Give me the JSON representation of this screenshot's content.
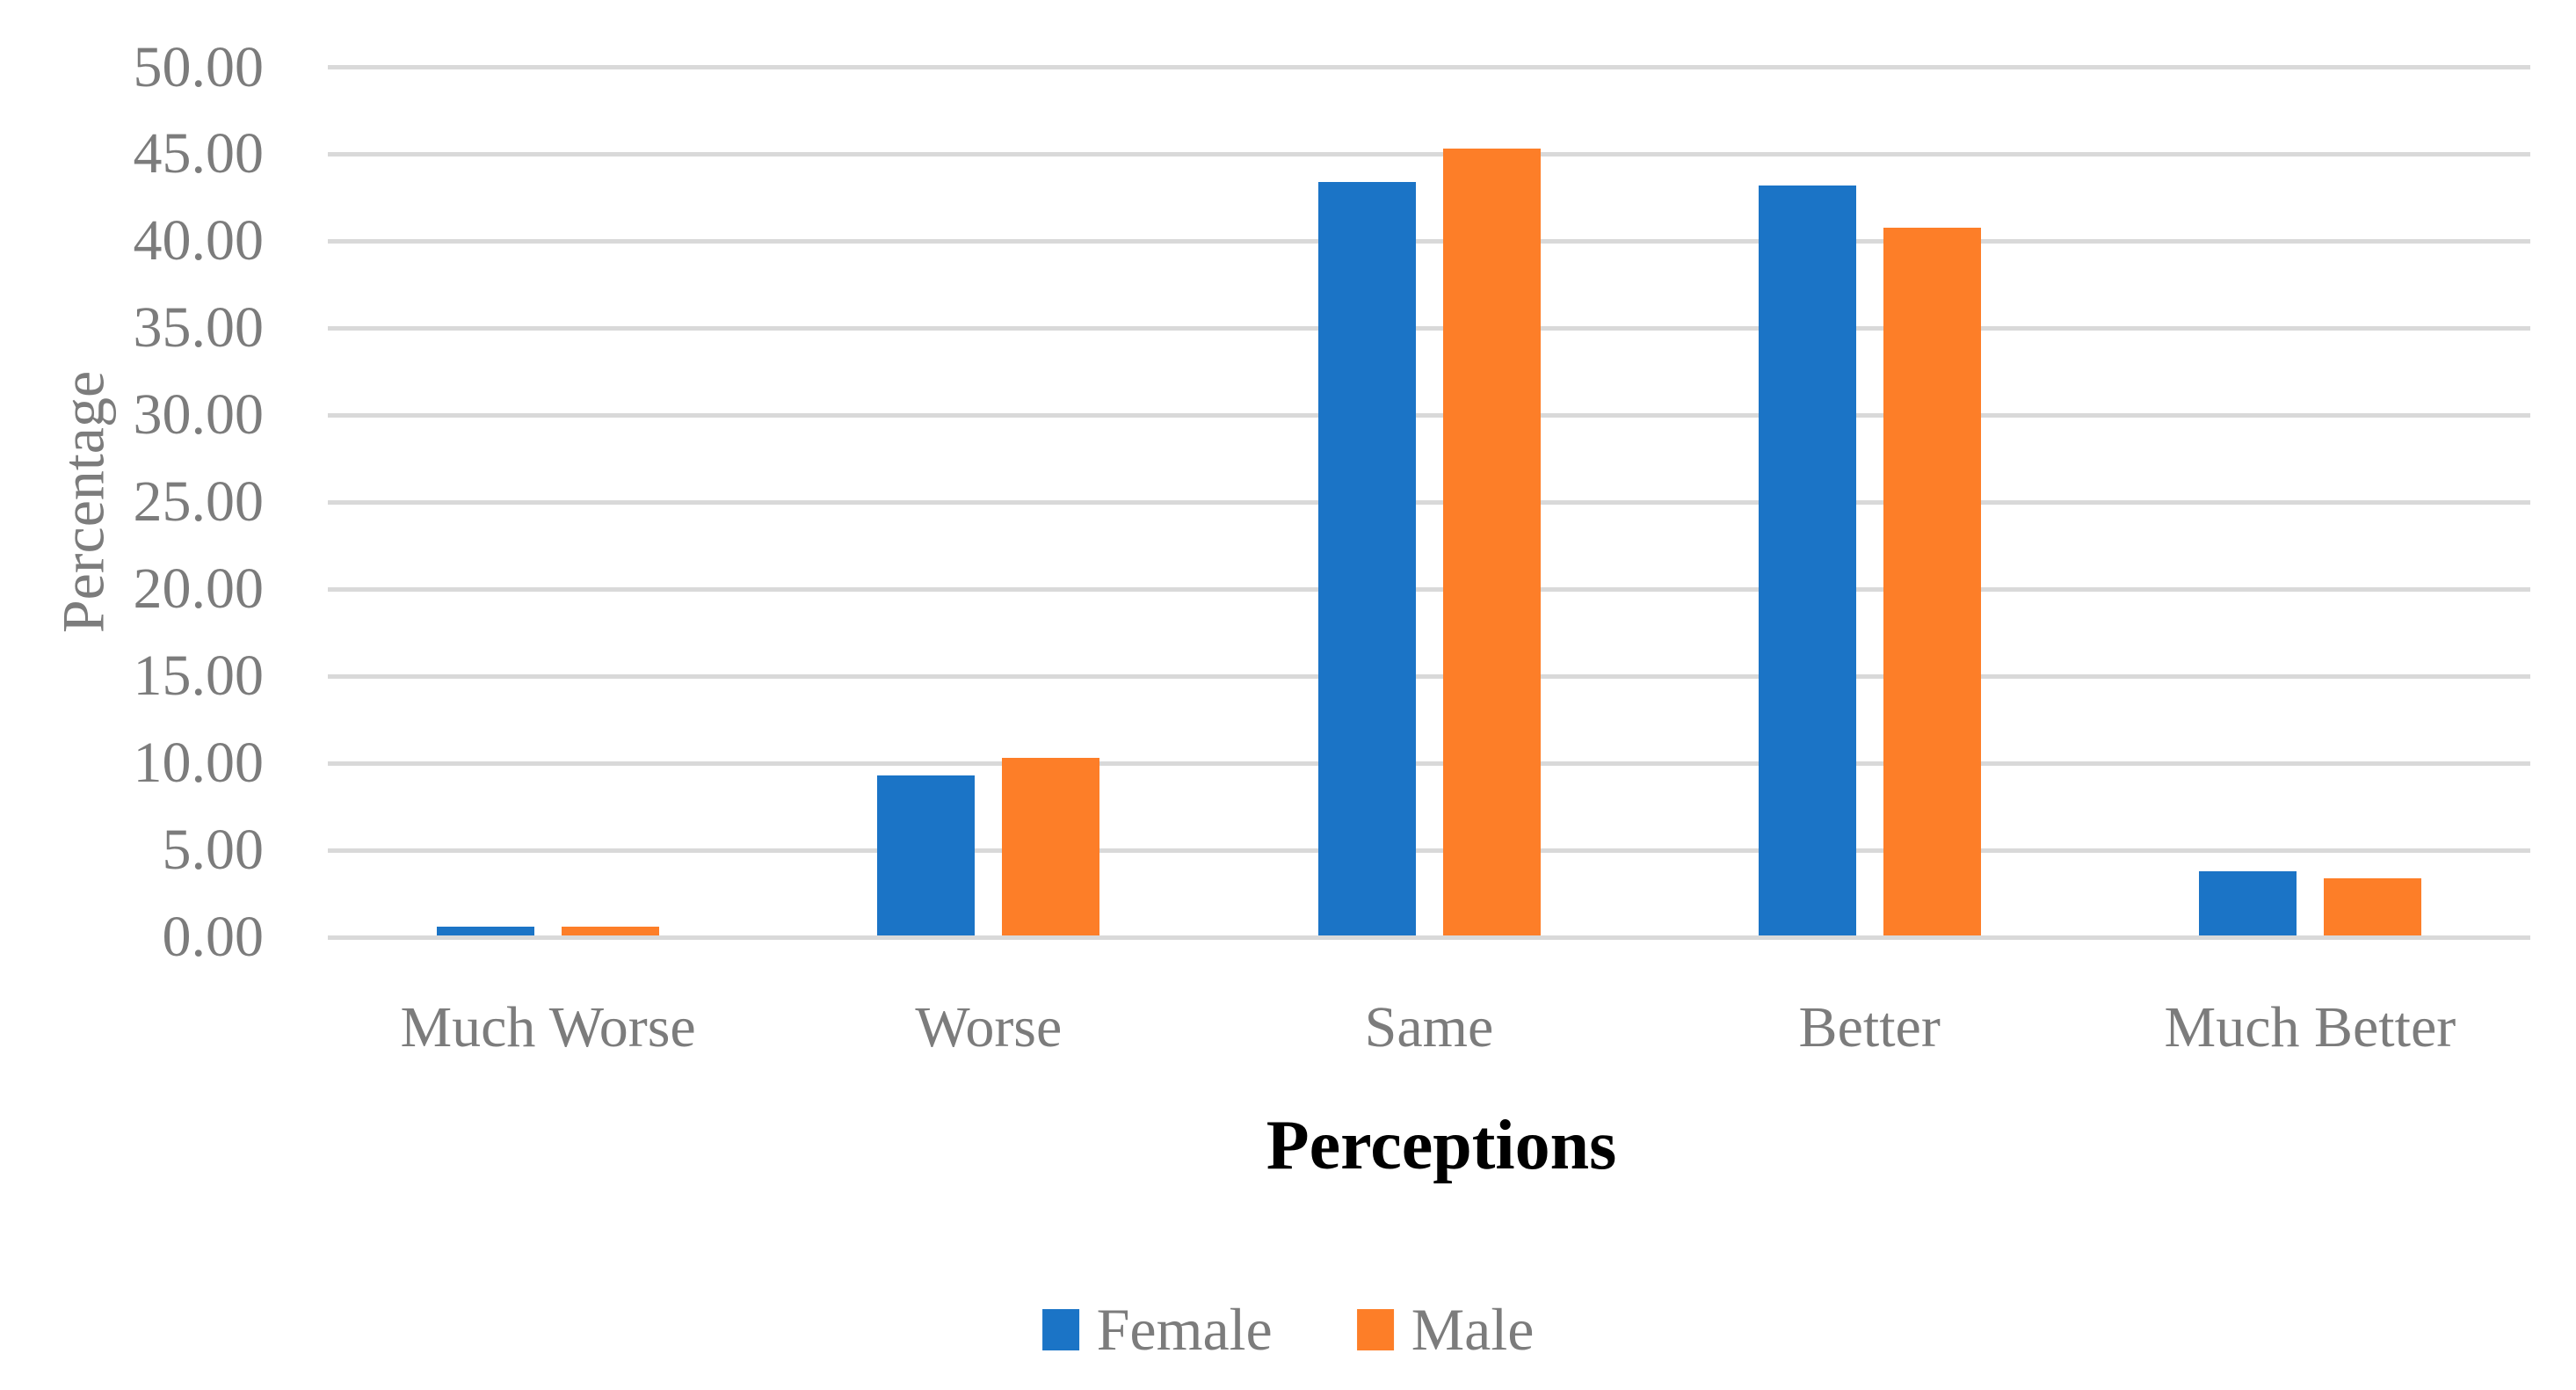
{
  "chart_data": {
    "type": "bar",
    "title": "",
    "categories": [
      "Much Worse",
      "Worse",
      "Same",
      "Better",
      "Much Better"
    ],
    "series": [
      {
        "name": "Female",
        "color": "#1B74C6",
        "values": [
          0.5,
          9.2,
          43.3,
          43.1,
          3.7
        ]
      },
      {
        "name": "Male",
        "color": "#FD7E28",
        "values": [
          0.5,
          10.2,
          45.2,
          40.7,
          3.3
        ]
      }
    ],
    "xlabel": "Perceptions",
    "ylabel": "Percentage",
    "ylim": [
      0,
      50
    ],
    "ytick_interval": 5,
    "ytick_labels": [
      "0.00",
      "5.00",
      "10.00",
      "15.00",
      "20.00",
      "25.00",
      "30.00",
      "35.00",
      "40.00",
      "45.00",
      "50.00"
    ],
    "grid": "horizontal",
    "gridline_color": "#D9D9D9",
    "axis_text_color": "#7C7C7C",
    "x_title_color": "#000000",
    "legend_position": "bottom-center"
  }
}
